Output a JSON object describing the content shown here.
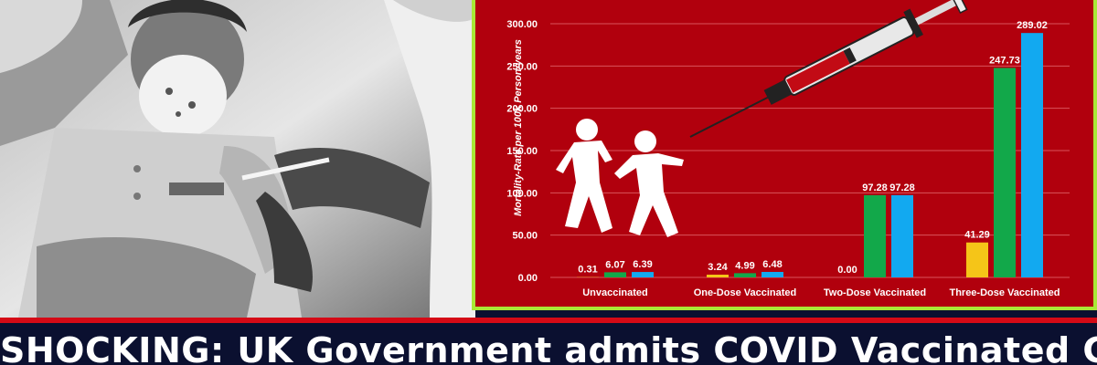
{
  "headline": "SHOCKING: UK Government admits COVID Vaccinated Children",
  "colors": {
    "panel_background": "#b1000d",
    "panel_border": "#a8e835",
    "banner_background": "#0b1030",
    "accent_line": "#d50a16"
  },
  "photo": {
    "description_icons": [
      "masked-child",
      "gloved-hand",
      "vaccine-injection"
    ]
  },
  "chart_data": {
    "type": "bar",
    "ylabel": "Mortality-Rate per 100k Person-years",
    "ylim": [
      0,
      300
    ],
    "yticks": [
      "0.00",
      "50.00",
      "100.00",
      "150.00",
      "200.00",
      "250.00",
      "300.00"
    ],
    "categories": [
      "Unvaccinated",
      "One-Dose Vaccinated",
      "Two-Dose Vaccinated",
      "Three-Dose Vaccinated"
    ],
    "series": [
      {
        "color": "#f5c518",
        "values": [
          0.31,
          3.24,
          0.0,
          41.29
        ],
        "labels": [
          "0.31",
          "3.24",
          "0.00",
          "41.29"
        ]
      },
      {
        "color": "#12a84a",
        "values": [
          6.07,
          4.99,
          97.28,
          247.73
        ],
        "labels": [
          "6.07",
          "4.99",
          "97.28",
          "247.73"
        ]
      },
      {
        "color": "#12a9f0",
        "values": [
          6.39,
          6.48,
          97.28,
          289.02
        ],
        "labels": [
          "6.39",
          "6.48",
          "97.28",
          "289.02"
        ]
      }
    ],
    "grid": true,
    "legend": "none",
    "decoration_icons": [
      "syringe-icon",
      "children-silhouette-icon"
    ]
  }
}
